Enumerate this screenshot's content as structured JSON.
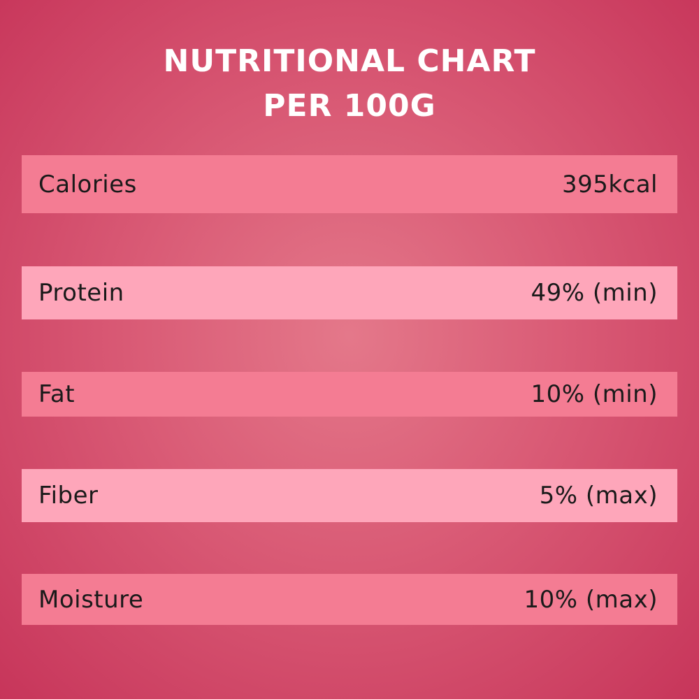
{
  "header": {
    "title": [
      "NUTRITIONAL CHART",
      "PER 100G"
    ]
  },
  "table": {
    "rows": [
      [
        "Calories",
        "395kcal"
      ],
      [
        "Protein",
        "49% (min)"
      ],
      [
        "Fat",
        "10% (min)"
      ],
      [
        "Fiber",
        "5% (max)"
      ],
      [
        "Moisture",
        "10% (max)"
      ]
    ]
  }
}
